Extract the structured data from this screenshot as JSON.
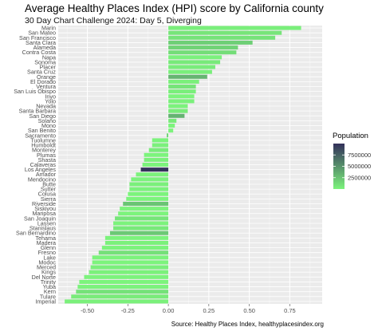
{
  "chart_data": {
    "type": "bar",
    "orientation": "horizontal",
    "title": "Average Healthy Places Index (HPI) score by California county",
    "subtitle": "30 Day Chart Challenge 2024: Day 5, Diverging",
    "caption": "Source: Healthy Places Index, healthyplacesindex.org",
    "xlabel": "",
    "ylabel": "",
    "xlim": [
      -0.68,
      0.95
    ],
    "x_ticks": [
      -0.5,
      -0.25,
      0,
      0.25,
      0.5,
      0.75
    ],
    "x_tick_labels": [
      "-0.50",
      "-0.25",
      "0.00",
      "0.25",
      "0.50",
      "0.75"
    ],
    "grid": true,
    "legend": {
      "title": "Population",
      "position": "right",
      "breaks": [
        7500000,
        5000000,
        2500000
      ],
      "break_labels": [
        "7500000",
        "5000000",
        "2500000"
      ],
      "range": [
        0,
        10000000
      ],
      "color_low": "#7cf47c",
      "color_high": "#33305a"
    },
    "categories": [
      "Marin",
      "San Mateo",
      "San Francisco",
      "Santa Clara",
      "Alameda",
      "Contra Costa",
      "Napa",
      "Sonoma",
      "Placer",
      "Santa Cruz",
      "Orange",
      "El Dorado",
      "Ventura",
      "San Luis Obispo",
      "Inyo",
      "Yolo",
      "Nevada",
      "Santa Barbara",
      "San Diego",
      "Solano",
      "Mono",
      "San Benito",
      "Sacramento",
      "Tuolumne",
      "Humboldt",
      "Monterey",
      "Plumas",
      "Shasta",
      "Calaveras",
      "Los Angeles",
      "Amador",
      "Mendocino",
      "Butte",
      "Sutter",
      "Colusa",
      "Sierra",
      "Riverside",
      "Siskiyou",
      "Mariposa",
      "San Joaquin",
      "Lassen",
      "Stanislaus",
      "San Bernardino",
      "Tehama",
      "Madera",
      "Glenn",
      "Fresno",
      "Lake",
      "Modoc",
      "Merced",
      "Kings",
      "Del Norte",
      "Trinity",
      "Yuba",
      "Kern",
      "Tulare",
      "Imperial"
    ],
    "values": [
      0.82,
      0.7,
      0.66,
      0.52,
      0.43,
      0.42,
      0.33,
      0.32,
      0.29,
      0.27,
      0.24,
      0.19,
      0.17,
      0.17,
      0.16,
      0.16,
      0.12,
      0.12,
      0.1,
      0.05,
      0.04,
      0.03,
      -0.01,
      -0.1,
      -0.1,
      -0.12,
      -0.15,
      -0.15,
      -0.16,
      -0.17,
      -0.2,
      -0.23,
      -0.24,
      -0.24,
      -0.25,
      -0.26,
      -0.28,
      -0.3,
      -0.31,
      -0.33,
      -0.34,
      -0.34,
      -0.36,
      -0.39,
      -0.39,
      -0.41,
      -0.43,
      -0.47,
      -0.47,
      -0.48,
      -0.49,
      -0.52,
      -0.55,
      -0.56,
      -0.57,
      -0.6,
      -0.64
    ],
    "population": [
      260000,
      740000,
      870000,
      1900000,
      1670000,
      1160000,
      140000,
      490000,
      400000,
      270000,
      3190000,
      190000,
      840000,
      280000,
      18000,
      220000,
      100000,
      450000,
      3300000,
      450000,
      13000,
      64000,
      1580000,
      55000,
      136000,
      440000,
      20000,
      182000,
      46000,
      9800000,
      40000,
      91000,
      211000,
      99000,
      22000,
      3000,
      2420000,
      44000,
      17000,
      780000,
      31000,
      550000,
      2180000,
      65000,
      157000,
      28000,
      1010000,
      68000,
      9000,
      280000,
      152000,
      27000,
      16000,
      81000,
      910000,
      473000,
      180000
    ]
  }
}
